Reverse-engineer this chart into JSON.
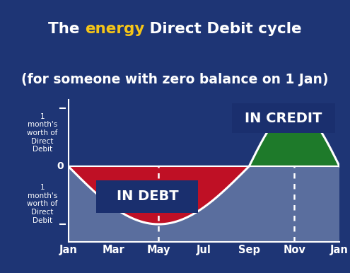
{
  "title_energy_color": "#f5c518",
  "title_color": "#ffffff",
  "title_fontsize": 15.5,
  "title_line2_fontsize": 13.5,
  "bg_color": "#1e3575",
  "plot_bg_lower": "#5a6e9e",
  "plot_bg_upper": "#1e3575",
  "zero_line_color": "#ffffff",
  "curve_color": "#ffffff",
  "red_fill": "#bf1025",
  "green_fill": "#1e7a2a",
  "debt_box_color": "#1a2f6e",
  "credit_box_color": "#1a2f6e",
  "label_text_color": "#ffffff",
  "label_fontsize": 14,
  "dashed_line_color": "#ffffff",
  "x_months": [
    "Jan",
    "Mar",
    "May",
    "Jul",
    "Sep",
    "Nov",
    "Jan"
  ],
  "x_ticks": [
    0,
    2,
    4,
    6,
    8,
    10,
    12
  ],
  "ylabel_top": "1\nmonth's\nworth of\nDirect\nDebit",
  "ylabel_bottom": "1\nmonth's\nworth of\nDirect\nDebit",
  "in_debt_label": "IN DEBT",
  "in_credit_label": "IN CREDIT",
  "ylim": [
    -1.3,
    1.15
  ],
  "xlim": [
    0,
    12
  ]
}
